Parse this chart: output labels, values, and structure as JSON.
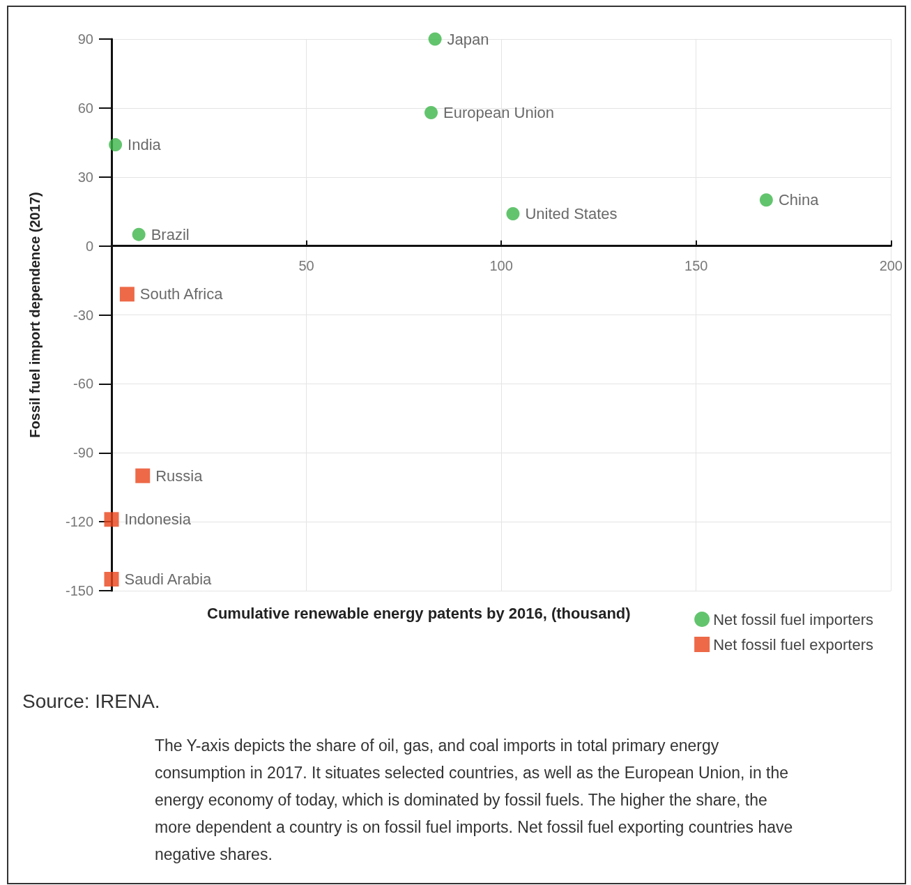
{
  "chart_data": {
    "type": "scatter",
    "xlabel": "Cumulative renewable energy patents by 2016, (thousand)",
    "ylabel": "Fossil fuel import dependence (2017)",
    "xlim": [
      0,
      200
    ],
    "xticks": [
      50,
      100,
      150,
      200
    ],
    "ylim": [
      -150,
      90
    ],
    "yticks": [
      -150,
      -120,
      -90,
      -60,
      -30,
      0,
      30,
      60,
      90
    ],
    "grid": true,
    "legend": "bottom right",
    "series": [
      {
        "name": "Net fossil fuel importers",
        "color": "#3cb54a",
        "marker": "circle",
        "x": [
          83,
          82,
          1,
          7,
          103,
          168
        ],
        "values": [
          90,
          58,
          44,
          5,
          14,
          20
        ]
      },
      {
        "name": "Net fossil fuel exporters",
        "color": "#e8431a",
        "marker": "square",
        "x": [
          4,
          8,
          0,
          0
        ],
        "values": [
          -21,
          -100,
          -119,
          -145
        ]
      }
    ],
    "annotations": [
      {
        "text": "Japan",
        "x": 83,
        "y": 90
      },
      {
        "text": "European Union",
        "x": 82,
        "y": 58
      },
      {
        "text": "India",
        "x": 1,
        "y": 44
      },
      {
        "text": "Brazil",
        "x": 7,
        "y": 5
      },
      {
        "text": "United States",
        "x": 103,
        "y": 14
      },
      {
        "text": "China",
        "x": 168,
        "y": 20
      },
      {
        "text": "South Africa",
        "x": 4,
        "y": -21
      },
      {
        "text": "Russia",
        "x": 8,
        "y": -100
      },
      {
        "text": "Indonesia",
        "x": 0,
        "y": -119
      },
      {
        "text": "Saudi Arabia",
        "x": 0,
        "y": -145
      },
      "Source: IRENA.",
      "The Y-axis depicts the share of oil, gas, and coal imports in total primary energy consumption in 2017. It situates selected countries, as well as the European Union, in the energy economy of today, which is dominated by fossil fuels. The higher the share, the more dependent a country is on fossil fuel imports. Net fossil fuel exporting countries have negative shares."
    ]
  }
}
